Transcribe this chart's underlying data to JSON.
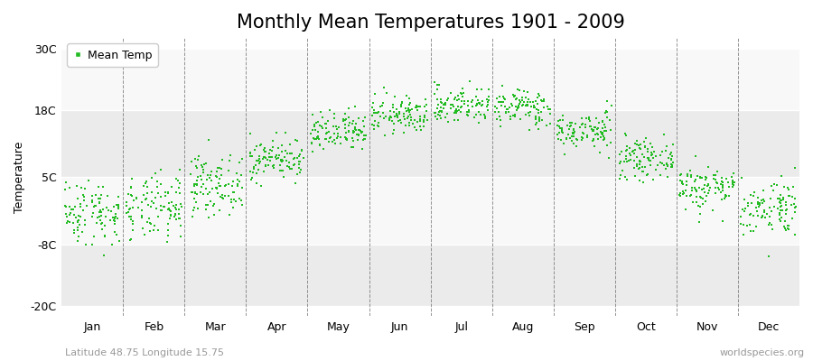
{
  "title": "Monthly Mean Temperatures 1901 - 2009",
  "ylabel": "Temperature",
  "yticks": [
    -20,
    -8,
    5,
    18,
    30
  ],
  "ytick_labels": [
    "-20C",
    "-8C",
    "5C",
    "18C",
    "30C"
  ],
  "ylim": [
    -22,
    32
  ],
  "months": [
    "Jan",
    "Feb",
    "Mar",
    "Apr",
    "May",
    "Jun",
    "Jul",
    "Aug",
    "Sep",
    "Oct",
    "Nov",
    "Dec"
  ],
  "dot_color": "#22bb22",
  "dot_size": 3,
  "background_color": "#ffffff",
  "plot_bg_color": "#ffffff",
  "band_color_even": "#ebebeb",
  "band_color_odd": "#f8f8f8",
  "legend_label": "Mean Temp",
  "subtitle_left": "Latitude 48.75 Longitude 15.75",
  "subtitle_right": "worldspecies.org",
  "start_year": 1901,
  "end_year": 2009,
  "monthly_means": [
    -1.8,
    -1.2,
    3.5,
    8.5,
    13.5,
    17.0,
    19.0,
    18.5,
    14.0,
    8.5,
    3.0,
    -0.8
  ],
  "monthly_stds": [
    3.2,
    3.2,
    2.8,
    2.0,
    2.0,
    1.8,
    1.8,
    1.8,
    1.8,
    1.8,
    2.2,
    2.8
  ],
  "grid_color": "#666666",
  "title_fontsize": 15,
  "axis_fontsize": 9,
  "legend_fontsize": 9,
  "subtitle_fontsize": 8
}
